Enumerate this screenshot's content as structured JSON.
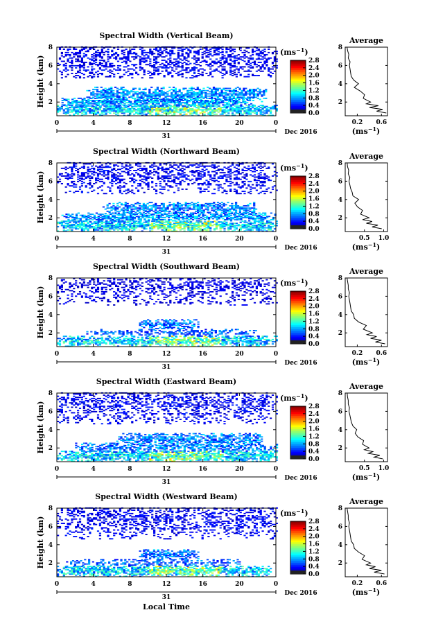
{
  "figure": {
    "xlabel": "Local Time",
    "ylabel": "Height (km)",
    "date_label": "Dec 2016",
    "day_label": "31",
    "colorbar_unit": "(ms",
    "colorbar_exp": "−1",
    "avg_title": "Average",
    "avg_unit": "(ms",
    "avg_exp": "−1"
  },
  "chart_data": [
    {
      "type": "heatmap",
      "title": "Spectral Width (Vertical Beam)",
      "beam": "vertical",
      "xlabel": "",
      "ylabel": "Height (km)",
      "xlim": [
        0,
        24
      ],
      "ylim": [
        0.5,
        8
      ],
      "x_ticks": [
        "0",
        "4",
        "8",
        "12",
        "16",
        "20",
        "0"
      ],
      "y_ticks": [
        "2",
        "4",
        "6",
        "8"
      ],
      "colorbar": {
        "min": 0,
        "max": 2.8,
        "ticks": [
          "0.0",
          "0.4",
          "0.8",
          "1.2",
          "1.6",
          "2.0",
          "2.4",
          "2.8"
        ]
      },
      "layers": [
        {
          "h": 1.1,
          "thick": 0.6,
          "t0": 0.0,
          "t1": 24.0,
          "level": 0.35,
          "dens": 0.9
        },
        {
          "h": 1.9,
          "thick": 0.5,
          "t0": 0.5,
          "t1": 21.5,
          "level": 0.3,
          "dens": 0.85
        },
        {
          "h": 2.8,
          "thick": 0.8,
          "t0": 3.0,
          "t1": 23.0,
          "level": 0.28,
          "dens": 0.8
        },
        {
          "h": 6.8,
          "thick": 2.2,
          "t0": 0.0,
          "t1": 24.0,
          "level": 0.12,
          "dens": 0.45
        }
      ],
      "profile": {
        "x_ticks": [
          "0.2",
          "0.6"
        ],
        "xlim": [
          0,
          0.7
        ],
        "heights": [
          0.8,
          1.0,
          1.2,
          1.4,
          1.6,
          1.8,
          2.0,
          2.4,
          2.8,
          3.2,
          3.6,
          4.0,
          4.4,
          4.8,
          5.2,
          5.6,
          6.0,
          6.4,
          6.8,
          7.2,
          7.6,
          8.0
        ],
        "values": [
          0.68,
          0.52,
          0.62,
          0.4,
          0.55,
          0.35,
          0.42,
          0.3,
          0.32,
          0.25,
          0.15,
          0.22,
          0.14,
          0.1,
          0.09,
          0.08,
          0.07,
          0.08,
          0.05,
          0.06,
          0.04,
          0.03
        ]
      }
    },
    {
      "type": "heatmap",
      "title": "Spectral Width (Northward Beam)",
      "beam": "northward",
      "xlabel": "",
      "ylabel": "Height (km)",
      "xlim": [
        0,
        24
      ],
      "ylim": [
        0.5,
        8
      ],
      "x_ticks": [
        "0",
        "4",
        "8",
        "12",
        "16",
        "20",
        "0"
      ],
      "y_ticks": [
        "2",
        "4",
        "6",
        "8"
      ],
      "colorbar": {
        "min": 0,
        "max": 2.8,
        "ticks": [
          "0.0",
          "0.4",
          "0.8",
          "1.2",
          "1.6",
          "2.0",
          "2.4",
          "2.8"
        ]
      },
      "layers": [
        {
          "h": 1.1,
          "thick": 0.6,
          "t0": 0.0,
          "t1": 24.0,
          "level": 0.35,
          "dens": 0.9
        },
        {
          "h": 2.0,
          "thick": 0.5,
          "t0": 0.5,
          "t1": 24.0,
          "level": 0.28,
          "dens": 0.8
        },
        {
          "h": 3.0,
          "thick": 0.7,
          "t0": 5.0,
          "t1": 22.0,
          "level": 0.27,
          "dens": 0.75
        },
        {
          "h": 6.8,
          "thick": 2.2,
          "t0": 0.0,
          "t1": 24.0,
          "level": 0.12,
          "dens": 0.4
        }
      ],
      "profile": {
        "x_ticks": [
          "0.5",
          "1.0"
        ],
        "xlim": [
          0,
          1.1
        ],
        "heights": [
          0.8,
          1.0,
          1.2,
          1.4,
          1.6,
          1.8,
          2.0,
          2.4,
          2.8,
          3.2,
          3.6,
          4.0,
          4.4,
          4.8,
          5.2,
          5.6,
          6.0,
          6.4,
          6.8,
          7.2,
          7.6,
          8.0
        ],
        "values": [
          0.95,
          0.7,
          0.85,
          0.55,
          0.7,
          0.45,
          0.62,
          0.4,
          0.45,
          0.32,
          0.25,
          0.35,
          0.2,
          0.18,
          0.14,
          0.12,
          0.1,
          0.12,
          0.08,
          0.09,
          0.06,
          0.05
        ]
      }
    },
    {
      "type": "heatmap",
      "title": "Spectral Width (Southward Beam)",
      "beam": "southward",
      "xlabel": "",
      "ylabel": "Height (km)",
      "xlim": [
        0,
        24
      ],
      "ylim": [
        0.5,
        8
      ],
      "x_ticks": [
        "0",
        "4",
        "8",
        "12",
        "16",
        "20",
        "0"
      ],
      "y_ticks": [
        "2",
        "4",
        "6",
        "8"
      ],
      "colorbar": {
        "min": 0,
        "max": 2.8,
        "ticks": [
          "0.0",
          "0.4",
          "0.8",
          "1.2",
          "1.6",
          "2.0",
          "2.4",
          "2.8"
        ]
      },
      "layers": [
        {
          "h": 1.1,
          "thick": 0.6,
          "t0": 0.0,
          "t1": 24.0,
          "level": 0.35,
          "dens": 0.85
        },
        {
          "h": 2.0,
          "thick": 0.4,
          "t0": 3.0,
          "t1": 22.0,
          "level": 0.22,
          "dens": 0.5
        },
        {
          "h": 2.9,
          "thick": 0.6,
          "t0": 9.0,
          "t1": 15.5,
          "level": 0.25,
          "dens": 0.75
        },
        {
          "h": 7.0,
          "thick": 2.0,
          "t0": 0.0,
          "t1": 24.0,
          "level": 0.1,
          "dens": 0.35
        }
      ],
      "profile": {
        "x_ticks": [
          "0.2",
          "0.6"
        ],
        "xlim": [
          0,
          0.7
        ],
        "heights": [
          0.8,
          1.0,
          1.2,
          1.4,
          1.6,
          1.8,
          2.0,
          2.4,
          2.8,
          3.2,
          3.6,
          4.0,
          4.4,
          4.8,
          5.2,
          5.6,
          6.0,
          6.4,
          6.8,
          7.2,
          7.6,
          8.0
        ],
        "values": [
          0.66,
          0.5,
          0.6,
          0.42,
          0.52,
          0.36,
          0.45,
          0.3,
          0.35,
          0.22,
          0.15,
          0.14,
          0.1,
          0.09,
          0.08,
          0.07,
          0.06,
          0.07,
          0.05,
          0.05,
          0.04,
          0.03
        ]
      }
    },
    {
      "type": "heatmap",
      "title": "Spectral Width (Eastward Beam)",
      "beam": "eastward",
      "xlabel": "",
      "ylabel": "Height (km)",
      "xlim": [
        0,
        24
      ],
      "ylim": [
        0.5,
        8
      ],
      "x_ticks": [
        "0",
        "4",
        "8",
        "12",
        "16",
        "20",
        "0"
      ],
      "y_ticks": [
        "2",
        "4",
        "6",
        "8"
      ],
      "colorbar": {
        "min": 0,
        "max": 2.8,
        "ticks": [
          "0.0",
          "0.4",
          "0.8",
          "1.2",
          "1.6",
          "2.0",
          "2.4",
          "2.8"
        ]
      },
      "layers": [
        {
          "h": 1.1,
          "thick": 0.6,
          "t0": 0.0,
          "t1": 24.0,
          "level": 0.35,
          "dens": 0.9
        },
        {
          "h": 2.0,
          "thick": 0.5,
          "t0": 2.0,
          "t1": 24.0,
          "level": 0.26,
          "dens": 0.65
        },
        {
          "h": 2.9,
          "thick": 0.7,
          "t0": 6.5,
          "t1": 22.5,
          "level": 0.26,
          "dens": 0.7
        },
        {
          "h": 6.8,
          "thick": 2.2,
          "t0": 0.0,
          "t1": 24.0,
          "level": 0.12,
          "dens": 0.4
        }
      ],
      "profile": {
        "x_ticks": [
          "0.5",
          "1.0"
        ],
        "xlim": [
          0,
          1.1
        ],
        "heights": [
          0.8,
          1.0,
          1.2,
          1.4,
          1.6,
          1.8,
          2.0,
          2.4,
          2.8,
          3.2,
          3.6,
          4.0,
          4.4,
          4.8,
          5.2,
          5.6,
          6.0,
          6.4,
          6.8,
          7.2,
          7.6,
          8.0
        ],
        "values": [
          0.98,
          0.75,
          0.9,
          0.6,
          0.72,
          0.5,
          0.62,
          0.45,
          0.48,
          0.33,
          0.26,
          0.3,
          0.2,
          0.16,
          0.14,
          0.12,
          0.1,
          0.11,
          0.08,
          0.08,
          0.06,
          0.05
        ]
      }
    },
    {
      "type": "heatmap",
      "title": "Spectral Width (Westward Beam)",
      "beam": "westward",
      "xlabel": "Local Time",
      "ylabel": "Height (km)",
      "xlim": [
        0,
        24
      ],
      "ylim": [
        0.5,
        8
      ],
      "x_ticks": [
        "0",
        "4",
        "8",
        "12",
        "16",
        "20",
        "0"
      ],
      "y_ticks": [
        "2",
        "4",
        "6",
        "8"
      ],
      "colorbar": {
        "min": 0,
        "max": 2.8,
        "ticks": [
          "0.0",
          "0.4",
          "0.8",
          "1.2",
          "1.6",
          "2.0",
          "2.4",
          "2.8"
        ]
      },
      "layers": [
        {
          "h": 1.1,
          "thick": 0.6,
          "t0": 0.0,
          "t1": 23.5,
          "level": 0.35,
          "dens": 0.9
        },
        {
          "h": 2.0,
          "thick": 0.4,
          "t0": 1.0,
          "t1": 20.0,
          "level": 0.22,
          "dens": 0.45
        },
        {
          "h": 2.9,
          "thick": 0.6,
          "t0": 9.0,
          "t1": 15.5,
          "level": 0.25,
          "dens": 0.75
        },
        {
          "h": 6.8,
          "thick": 2.2,
          "t0": 0.0,
          "t1": 24.0,
          "level": 0.12,
          "dens": 0.4
        }
      ],
      "profile": {
        "x_ticks": [
          "0.2",
          "0.6"
        ],
        "xlim": [
          0,
          0.7
        ],
        "heights": [
          0.8,
          1.0,
          1.2,
          1.4,
          1.6,
          1.8,
          2.0,
          2.4,
          2.8,
          3.2,
          3.6,
          4.0,
          4.4,
          4.8,
          5.2,
          5.6,
          6.0,
          6.4,
          6.8,
          7.2,
          7.6,
          8.0
        ],
        "values": [
          0.65,
          0.48,
          0.6,
          0.4,
          0.5,
          0.35,
          0.42,
          0.28,
          0.32,
          0.22,
          0.15,
          0.14,
          0.1,
          0.09,
          0.08,
          0.07,
          0.06,
          0.07,
          0.05,
          0.05,
          0.04,
          0.03
        ]
      }
    }
  ]
}
